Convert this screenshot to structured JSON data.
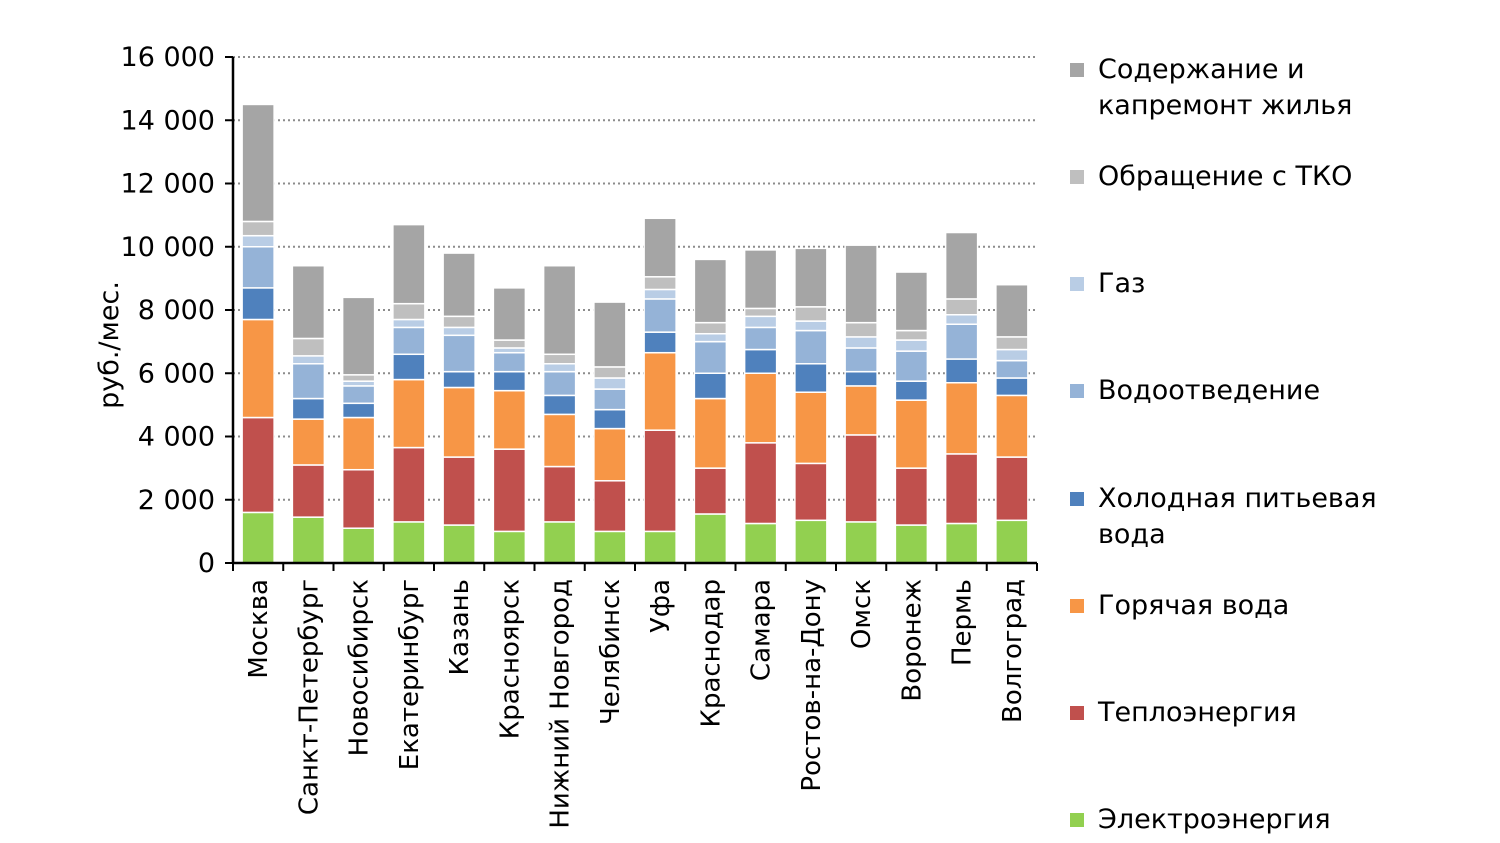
{
  "chart_data": {
    "type": "bar",
    "stacked": true,
    "title": "",
    "xlabel": "",
    "ylabel": "руб./мес.",
    "ylim": [
      0,
      16000
    ],
    "yticks": [
      0,
      2000,
      4000,
      6000,
      8000,
      10000,
      12000,
      14000,
      16000
    ],
    "ytick_labels": [
      "0",
      "2 000",
      "4 000",
      "6 000",
      "8 000",
      "10 000",
      "12 000",
      "14 000",
      "16 000"
    ],
    "grid": "horizontal dotted",
    "legend_position": "right",
    "categories": [
      "Москва",
      "Санкт-Петербург",
      "Новосибирск",
      "Екатеринбург",
      "Казань",
      "Красноярск",
      "Нижний Новгород",
      "Челябинск",
      "Уфа",
      "Краснодар",
      "Самара",
      "Ростов-на-Дону",
      "Омск",
      "Воронеж",
      "Пермь",
      "Волгоград"
    ],
    "series": [
      {
        "name": "Электроэнергия",
        "color": "#92d050",
        "values": [
          1600,
          1450,
          1100,
          1300,
          1200,
          1000,
          1300,
          1000,
          1000,
          1550,
          1250,
          1350,
          1300,
          1200,
          1250,
          1350
        ]
      },
      {
        "name": "Теплоэнергия",
        "color": "#c0504d",
        "values": [
          3000,
          1650,
          1850,
          2350,
          2150,
          2600,
          1750,
          1600,
          3200,
          1450,
          2550,
          1800,
          2750,
          1800,
          2200,
          2000
        ]
      },
      {
        "name": "Горячая вода",
        "color": "#f79646",
        "values": [
          3100,
          1450,
          1650,
          2150,
          2200,
          1850,
          1650,
          1650,
          2450,
          2200,
          2200,
          2250,
          1550,
          2150,
          2250,
          1950
        ]
      },
      {
        "name": "Холодная питьевая вода",
        "color": "#4f81bd",
        "values": [
          1000,
          650,
          450,
          800,
          500,
          600,
          600,
          600,
          650,
          800,
          750,
          900,
          450,
          600,
          750,
          550
        ]
      },
      {
        "name": "Водоотведение",
        "color": "#95b3d7",
        "values": [
          1300,
          1100,
          550,
          850,
          1150,
          600,
          750,
          650,
          1050,
          1000,
          700,
          1050,
          750,
          950,
          1100,
          550
        ]
      },
      {
        "name": "Газ",
        "color": "#b9cde5",
        "values": [
          350,
          250,
          150,
          250,
          250,
          150,
          250,
          350,
          300,
          250,
          350,
          300,
          350,
          350,
          300,
          350
        ]
      },
      {
        "name": "Обращение с ТКО",
        "color": "#bfbfbf",
        "values": [
          450,
          550,
          200,
          500,
          350,
          250,
          300,
          350,
          400,
          350,
          250,
          450,
          450,
          300,
          500,
          400
        ]
      },
      {
        "name": "Содержание и капремонт жилья",
        "color": "#a5a5a5",
        "values": [
          3700,
          2300,
          2450,
          2500,
          2000,
          1650,
          2800,
          2050,
          1850,
          2000,
          1850,
          1850,
          2450,
          1850,
          2100,
          1650
        ]
      }
    ]
  }
}
